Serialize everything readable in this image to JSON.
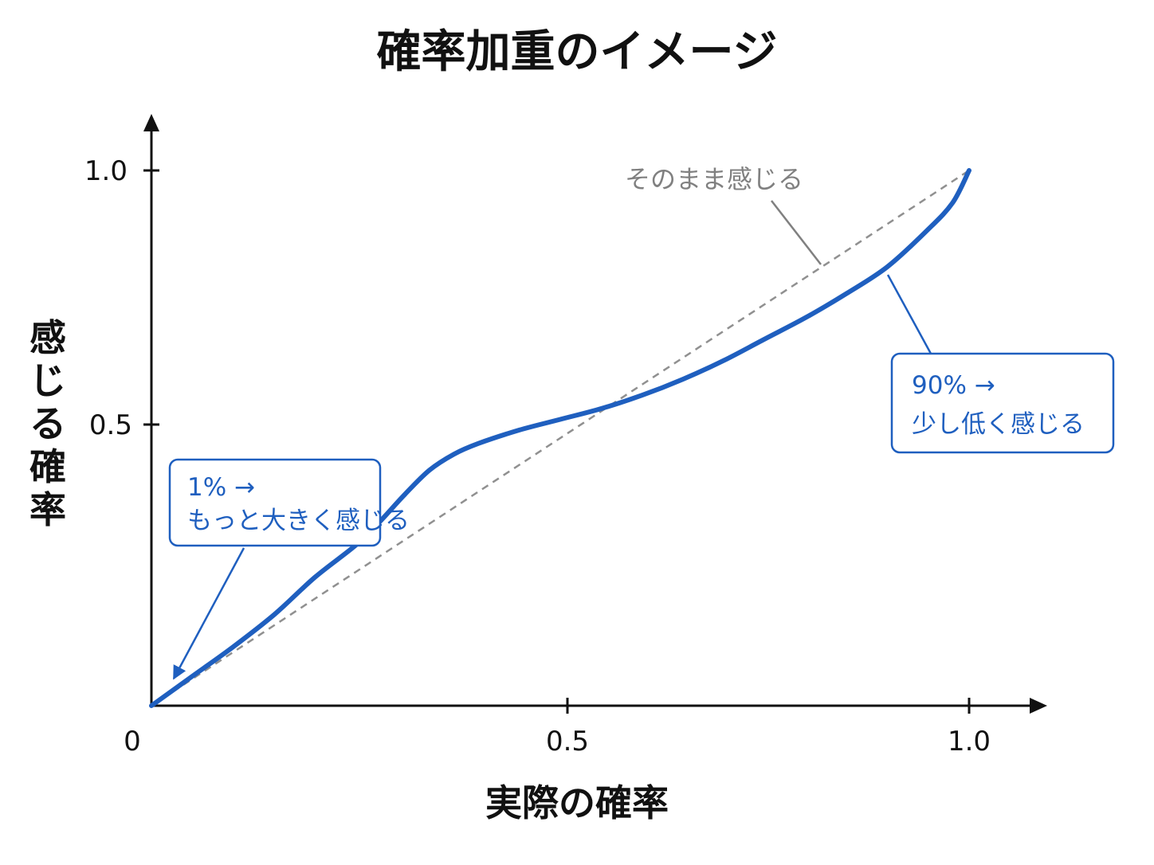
{
  "chart_data": {
    "type": "line",
    "title": "確率加重のイメージ",
    "xlabel": "実際の確率",
    "ylabel": "感じる確率",
    "xlim": [
      0,
      1.0
    ],
    "ylim": [
      0,
      1.0
    ],
    "x_ticks": [
      "0",
      "0.5",
      "1.0"
    ],
    "y_ticks": [
      "0.5",
      "1.0"
    ],
    "grid": false,
    "series": [
      {
        "name": "",
        "color": "#1f5fbf",
        "x": [
          0,
          0.05,
          0.1,
          0.15,
          0.2,
          0.25,
          0.28,
          0.31,
          0.34,
          0.37,
          0.4,
          0.45,
          0.5,
          0.55,
          0.6,
          0.65,
          0.7,
          0.75,
          0.8,
          0.85,
          0.9,
          0.95,
          0.98,
          1.0
        ],
        "y": [
          0,
          0.055,
          0.11,
          0.17,
          0.24,
          0.3,
          0.345,
          0.395,
          0.44,
          0.47,
          0.49,
          0.515,
          0.535,
          0.555,
          0.58,
          0.61,
          0.645,
          0.685,
          0.725,
          0.77,
          0.82,
          0.89,
          0.94,
          1.0
        ]
      },
      {
        "name": "そのまま感じる",
        "color": "#909090",
        "style": "dashed",
        "x": [
          0,
          1.0
        ],
        "y": [
          0,
          1.0
        ]
      }
    ],
    "annotations": [
      {
        "id": "low",
        "lines": [
          "1% →",
          "もっと大きく感じる"
        ],
        "color": "#1f5fbf",
        "point": [
          0.02,
          0.05
        ]
      },
      {
        "id": "high",
        "lines": [
          "90% →",
          "少し低く感じる"
        ],
        "color": "#1f5fbf",
        "point": [
          0.9,
          0.82
        ]
      },
      {
        "id": "ref",
        "lines": [
          "そのまま感じる"
        ],
        "color": "#808080",
        "point": [
          0.82,
          0.83
        ]
      }
    ]
  }
}
